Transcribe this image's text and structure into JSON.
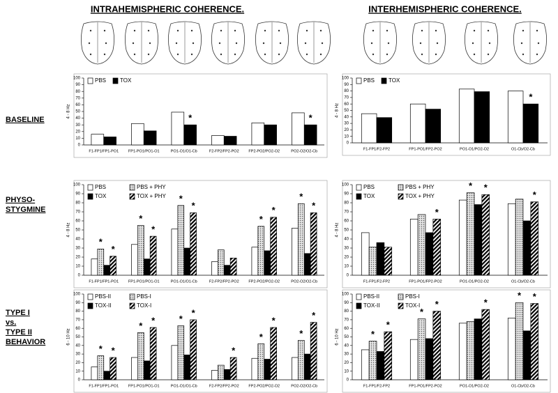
{
  "column_titles": [
    "INTRAHEMISPHERIC COHERENCE.",
    "INTERHEMISPHERIC COHERENCE."
  ],
  "row_labels": [
    [
      "BASELINE"
    ],
    [
      "PHYSO-",
      "STYGMINE"
    ],
    [
      "TYPE I",
      "vs.",
      "TYPE II",
      "BEHAVIOR"
    ]
  ],
  "chart_data": [
    {
      "type": "bar",
      "y_label": "4 - 8 Hz",
      "categories": [
        "F1-FP1/FP1-PO1",
        "FP1-PO1/PO1-O1",
        "PO1-O1/O1-Cb",
        "F2-FP2/FP2-PO2",
        "FP2-PO2/PO2-O2",
        "PO2-O2/O2-Cb"
      ],
      "series": [
        {
          "name": "PBS",
          "color": "#ffffff",
          "values": [
            16,
            32,
            49,
            14,
            33,
            48
          ]
        },
        {
          "name": "TOX",
          "color": "#000000",
          "values": [
            12,
            21,
            30,
            13,
            30,
            30
          ]
        }
      ],
      "ylim": [
        0,
        100
      ],
      "yticks": [
        0,
        10,
        20,
        30,
        40,
        50,
        60,
        70,
        80,
        90,
        100
      ],
      "significance": {
        "label": "*",
        "points": [
          [
            1,
            2
          ],
          [
            1,
            5
          ]
        ]
      }
    },
    {
      "type": "bar",
      "y_label": "4 - 8 Hz",
      "categories": [
        "F1-FP1/F2-FP2",
        "FP1-PO1/FP2-PO2",
        "PO1-O1/PO2-O2",
        "O1-Cb/O2-Cb"
      ],
      "series": [
        {
          "name": "PBS",
          "color": "#ffffff",
          "values": [
            45,
            60,
            83,
            80
          ]
        },
        {
          "name": "TOX",
          "color": "#000000",
          "values": [
            39,
            52,
            79,
            60
          ]
        }
      ],
      "ylim": [
        0,
        100
      ],
      "yticks": [
        0,
        10,
        20,
        30,
        40,
        50,
        60,
        70,
        80,
        90,
        100
      ],
      "significance": {
        "label": "*",
        "points": [
          [
            1,
            3
          ]
        ]
      }
    },
    {
      "type": "bar",
      "y_label": "4 - 8 Hz",
      "categories": [
        "F1-FP1/FP1-PO1",
        "FP1-PO1/PO1-O1",
        "PO1-O1/O1-Cb",
        "F2-FP2/FP2-PO2",
        "FP2-PO2/PO2-O2",
        "PO2-O2/O2-Cb"
      ],
      "series": [
        {
          "name": "PBS",
          "color": "#ffffff",
          "values": [
            18,
            34,
            51,
            15,
            31,
            52
          ]
        },
        {
          "name": "PBS + PHY",
          "color": "#c8c8c8",
          "pattern": "dots",
          "values": [
            29,
            55,
            77,
            28,
            54,
            79
          ]
        },
        {
          "name": "TOX",
          "color": "#000000",
          "values": [
            11,
            18,
            30,
            11,
            27,
            24
          ]
        },
        {
          "name": "TOX + PHY",
          "color": "#000000",
          "pattern": "hatch",
          "values": [
            21,
            43,
            69,
            19,
            64,
            69
          ]
        }
      ],
      "ylim": [
        0,
        100
      ],
      "yticks": [
        0,
        10,
        20,
        30,
        40,
        50,
        60,
        70,
        80,
        90,
        100
      ],
      "significance": {
        "label": "*",
        "points": [
          [
            1,
            0
          ],
          [
            3,
            0
          ],
          [
            1,
            1
          ],
          [
            3,
            1
          ],
          [
            1,
            2
          ],
          [
            3,
            2
          ],
          [
            1,
            4
          ],
          [
            3,
            4
          ],
          [
            1,
            5
          ],
          [
            3,
            5
          ]
        ]
      }
    },
    {
      "type": "bar",
      "y_label": "4 - 8 Hz",
      "categories": [
        "F1-FP1/F2-FP2",
        "FP1-PO1/FP2-PO2",
        "PO1-O1/PO2-O2",
        "O1-Cb/O2-Cb"
      ],
      "series": [
        {
          "name": "PBS",
          "color": "#ffffff",
          "values": [
            47,
            62,
            83,
            79
          ]
        },
        {
          "name": "PBS + PHY",
          "color": "#c8c8c8",
          "pattern": "dots",
          "values": [
            31,
            67,
            91,
            84
          ]
        },
        {
          "name": "TOX",
          "color": "#000000",
          "values": [
            36,
            47,
            78,
            60
          ]
        },
        {
          "name": "TOX + PHY",
          "color": "#000000",
          "pattern": "hatch",
          "values": [
            31,
            62,
            89,
            81
          ]
        }
      ],
      "ylim": [
        0,
        100
      ],
      "yticks": [
        0,
        10,
        20,
        30,
        40,
        50,
        60,
        70,
        80,
        90,
        100
      ],
      "significance": {
        "label": "*",
        "points": [
          [
            3,
            1
          ],
          [
            1,
            2
          ],
          [
            3,
            2
          ],
          [
            3,
            3
          ]
        ]
      }
    },
    {
      "type": "bar",
      "y_label": "6 - 10 Hz",
      "categories": [
        "F1-FP1/FP1-PO1",
        "FP1-PO1/PO1-O1",
        "PO1-O1/O1-Cb",
        "F2-FP2/FP2-PO2",
        "FP2-PO2/PO2-O2",
        "PO2-O2/O2-Cb"
      ],
      "series": [
        {
          "name": "PBS-II",
          "color": "#ffffff",
          "values": [
            15,
            26,
            40,
            11,
            25,
            26
          ]
        },
        {
          "name": "PBS-I",
          "color": "#c8c8c8",
          "pattern": "dots",
          "values": [
            28,
            55,
            63,
            17,
            42,
            46
          ]
        },
        {
          "name": "TOX-II",
          "color": "#000000",
          "values": [
            10,
            22,
            29,
            12,
            24,
            30
          ]
        },
        {
          "name": "TOX-I",
          "color": "#000000",
          "pattern": "hatch",
          "values": [
            26,
            61,
            70,
            26,
            61,
            67
          ]
        }
      ],
      "ylim": [
        0,
        100
      ],
      "yticks": [
        0,
        10,
        20,
        30,
        40,
        50,
        60,
        70,
        80,
        90,
        100
      ],
      "significance": {
        "label": "*",
        "points": [
          [
            1,
            0
          ],
          [
            3,
            0
          ],
          [
            1,
            1
          ],
          [
            3,
            1
          ],
          [
            1,
            2
          ],
          [
            3,
            2
          ],
          [
            3,
            3
          ],
          [
            1,
            4
          ],
          [
            3,
            4
          ],
          [
            1,
            5
          ],
          [
            3,
            5
          ]
        ]
      }
    },
    {
      "type": "bar",
      "y_label": "6 - 10 Hz",
      "categories": [
        "F1-FP1/F2-FP2",
        "FP1-PO1/FP2-PO2",
        "PO1-O1/PO2-O2",
        "O1-Cb/O2-Cb"
      ],
      "series": [
        {
          "name": "PBS-II",
          "color": "#ffffff",
          "values": [
            35,
            47,
            66,
            72
          ]
        },
        {
          "name": "PBS-I",
          "color": "#c8c8c8",
          "pattern": "dots",
          "values": [
            45,
            71,
            68,
            90
          ]
        },
        {
          "name": "TOX-II",
          "color": "#000000",
          "values": [
            33,
            48,
            71,
            57
          ]
        },
        {
          "name": "TOX-I",
          "color": "#000000",
          "pattern": "hatch",
          "values": [
            56,
            80,
            82,
            89
          ]
        }
      ],
      "ylim": [
        0,
        100
      ],
      "yticks": [
        0,
        10,
        20,
        30,
        40,
        50,
        60,
        70,
        80,
        90,
        100
      ],
      "significance": {
        "label": "*",
        "points": [
          [
            1,
            0
          ],
          [
            3,
            0
          ],
          [
            1,
            1
          ],
          [
            3,
            1
          ],
          [
            3,
            2
          ],
          [
            1,
            3
          ],
          [
            3,
            3
          ]
        ]
      }
    }
  ]
}
